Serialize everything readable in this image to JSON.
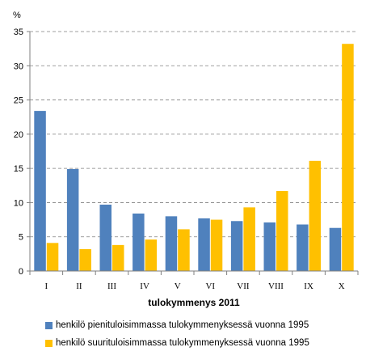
{
  "chart_data": {
    "type": "bar",
    "title": "",
    "ylabel": "%",
    "xlabel": "tulokymmenys 2011",
    "ylim": [
      0,
      35
    ],
    "yticks": [
      0,
      5,
      10,
      15,
      20,
      25,
      30,
      35
    ],
    "grid": "horizontal-dashed",
    "legend_position": "bottom",
    "categories": [
      "I",
      "II",
      "III",
      "IV",
      "V",
      "VI",
      "VII",
      "VIII",
      "IX",
      "X"
    ],
    "series": [
      {
        "name": "henkilö pienituloisimmassa tulokymmenyksessä vuonna 1995",
        "color": "#4f81bd",
        "values": [
          23.4,
          14.9,
          9.7,
          8.4,
          8.0,
          7.7,
          7.3,
          7.1,
          6.8,
          6.3
        ]
      },
      {
        "name": "henkilö suurituloisimmassa tulokymmenyksessä vuonna 1995",
        "color": "#ffc000",
        "values": [
          4.1,
          3.2,
          3.8,
          4.6,
          6.1,
          7.5,
          9.3,
          11.7,
          16.1,
          33.2
        ]
      }
    ]
  }
}
